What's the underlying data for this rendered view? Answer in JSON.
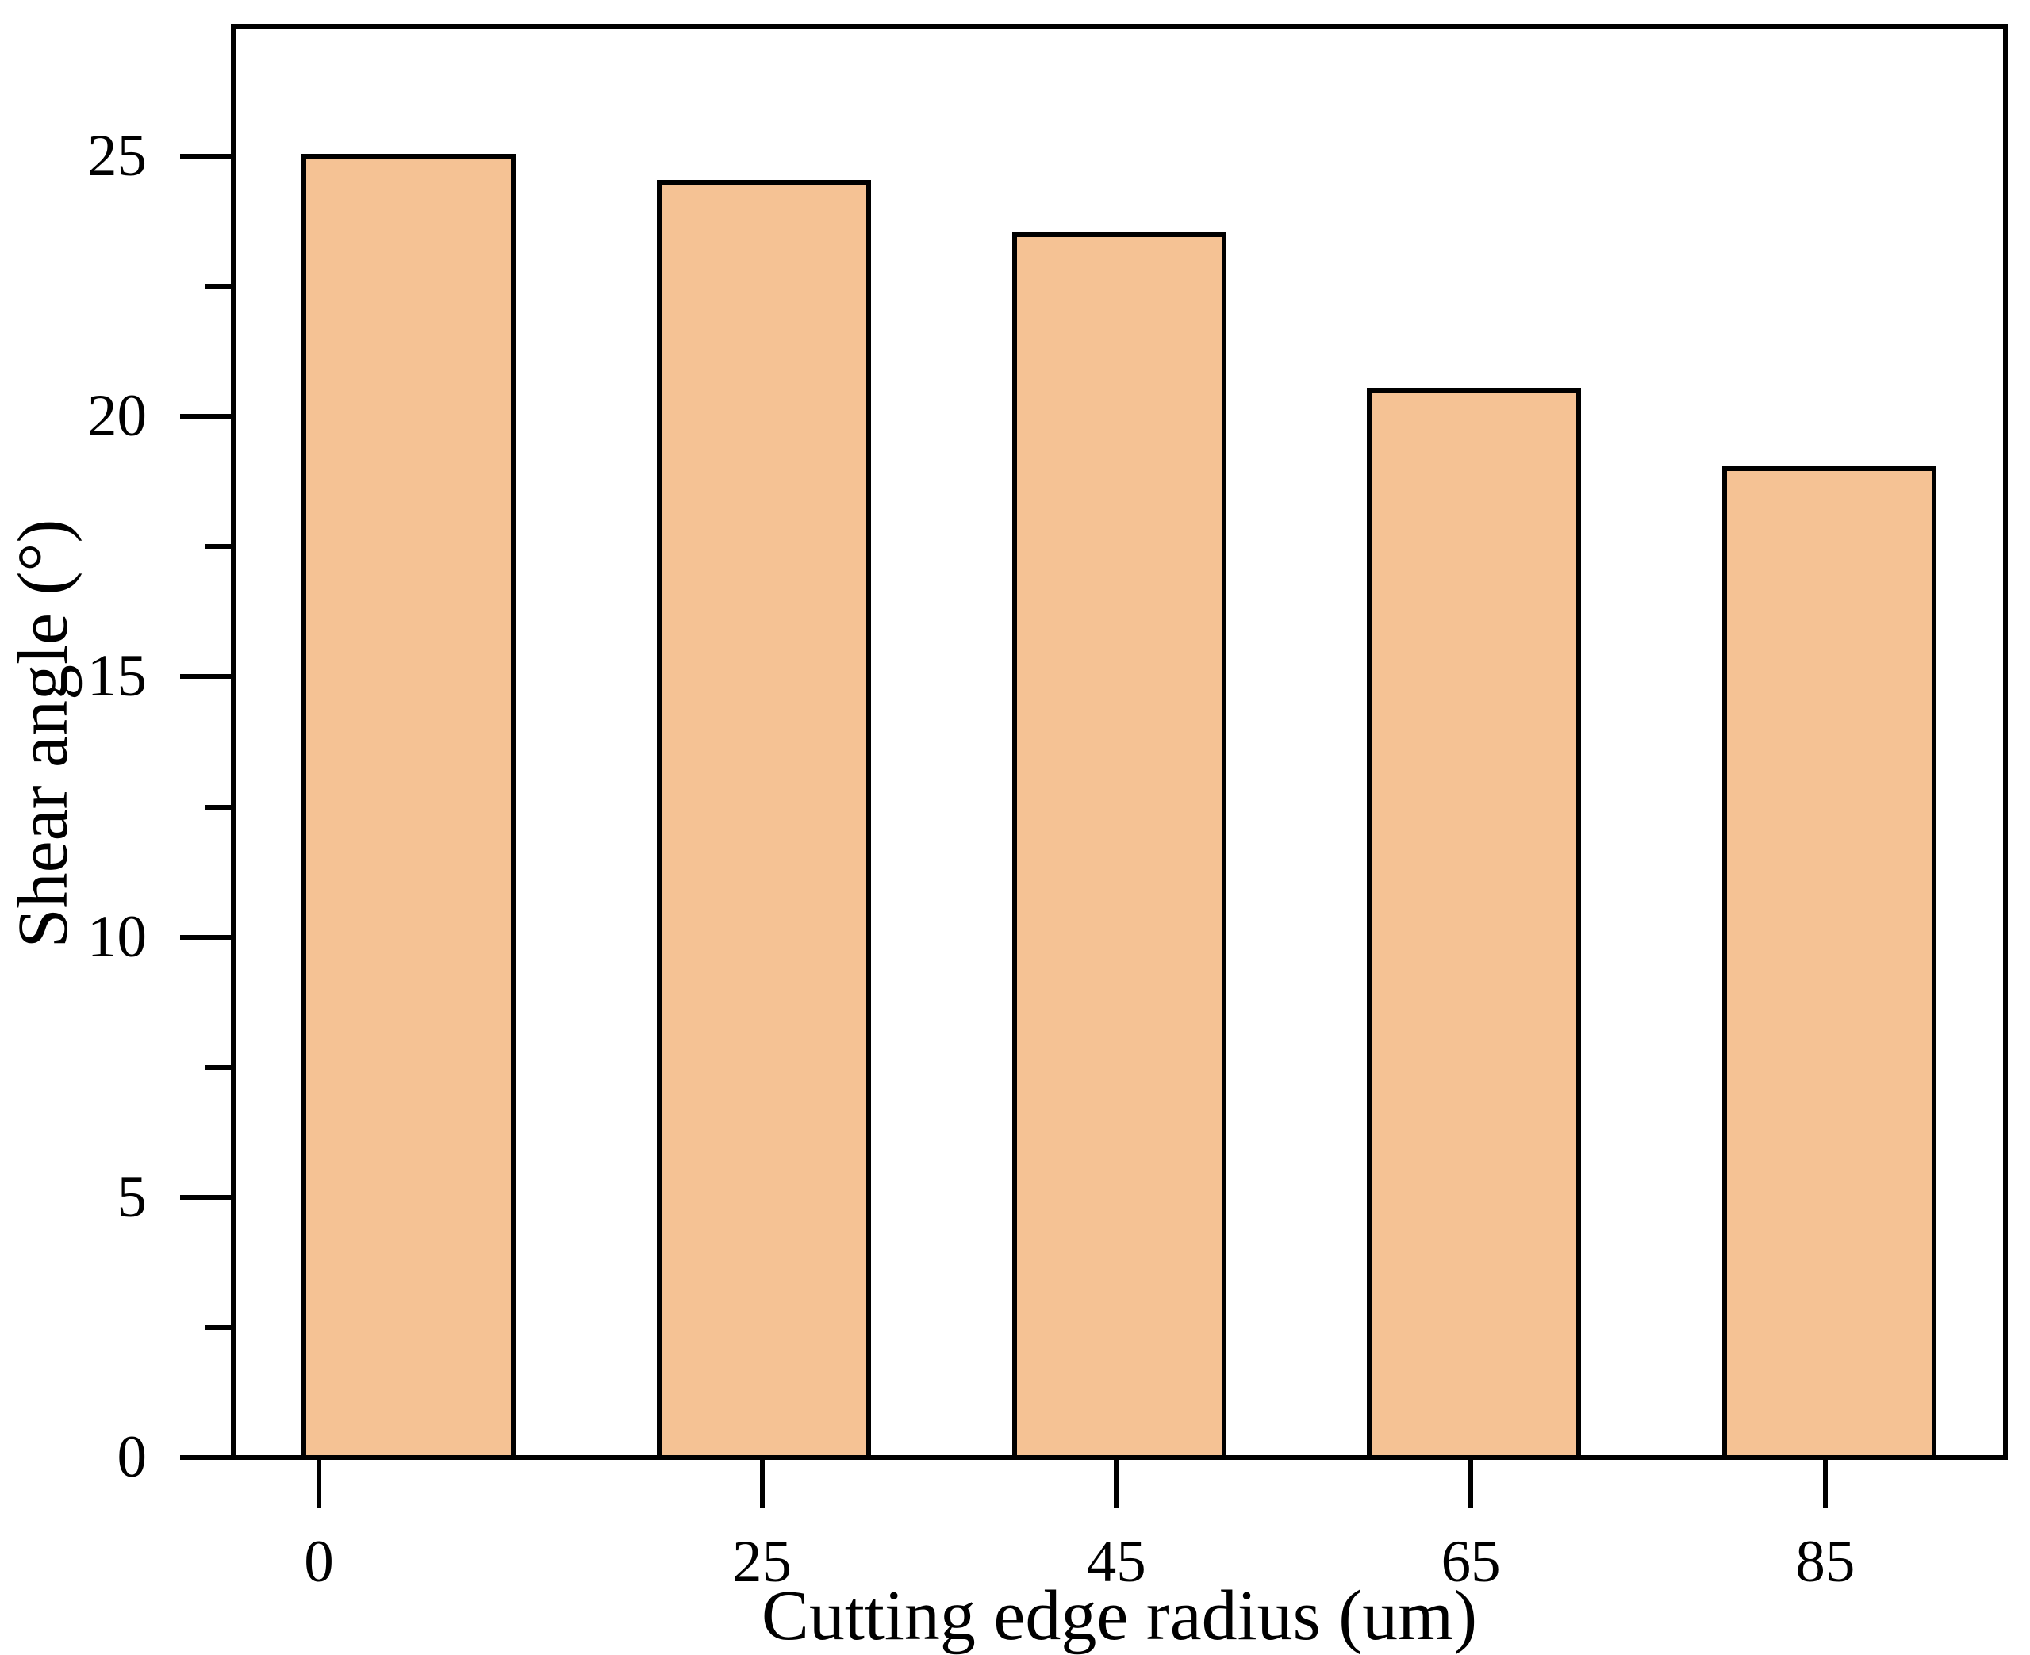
{
  "chart_data": {
    "type": "bar",
    "title": "",
    "categories": [
      "0",
      "25",
      "45",
      "65",
      "85"
    ],
    "x_values": [
      0,
      25,
      45,
      65,
      85
    ],
    "values": [
      25,
      24.5,
      23.5,
      20.5,
      19
    ],
    "series_name": "Shear angle",
    "xlabel": "Cutting edge radius (um)",
    "ylabel": "Shear angle (°)",
    "ylim": [
      0,
      27.5
    ],
    "y_major_ticks": [
      0,
      5,
      10,
      15,
      20,
      25
    ],
    "y_minor_ticks": [
      2.5,
      7.5,
      12.5,
      17.5,
      22.5
    ],
    "grid": false,
    "legend": false,
    "bar_fill_color": "#F5C294",
    "bar_border_color": "#000000",
    "axis_color": "#000000",
    "background_color": "#FFFFFF"
  }
}
